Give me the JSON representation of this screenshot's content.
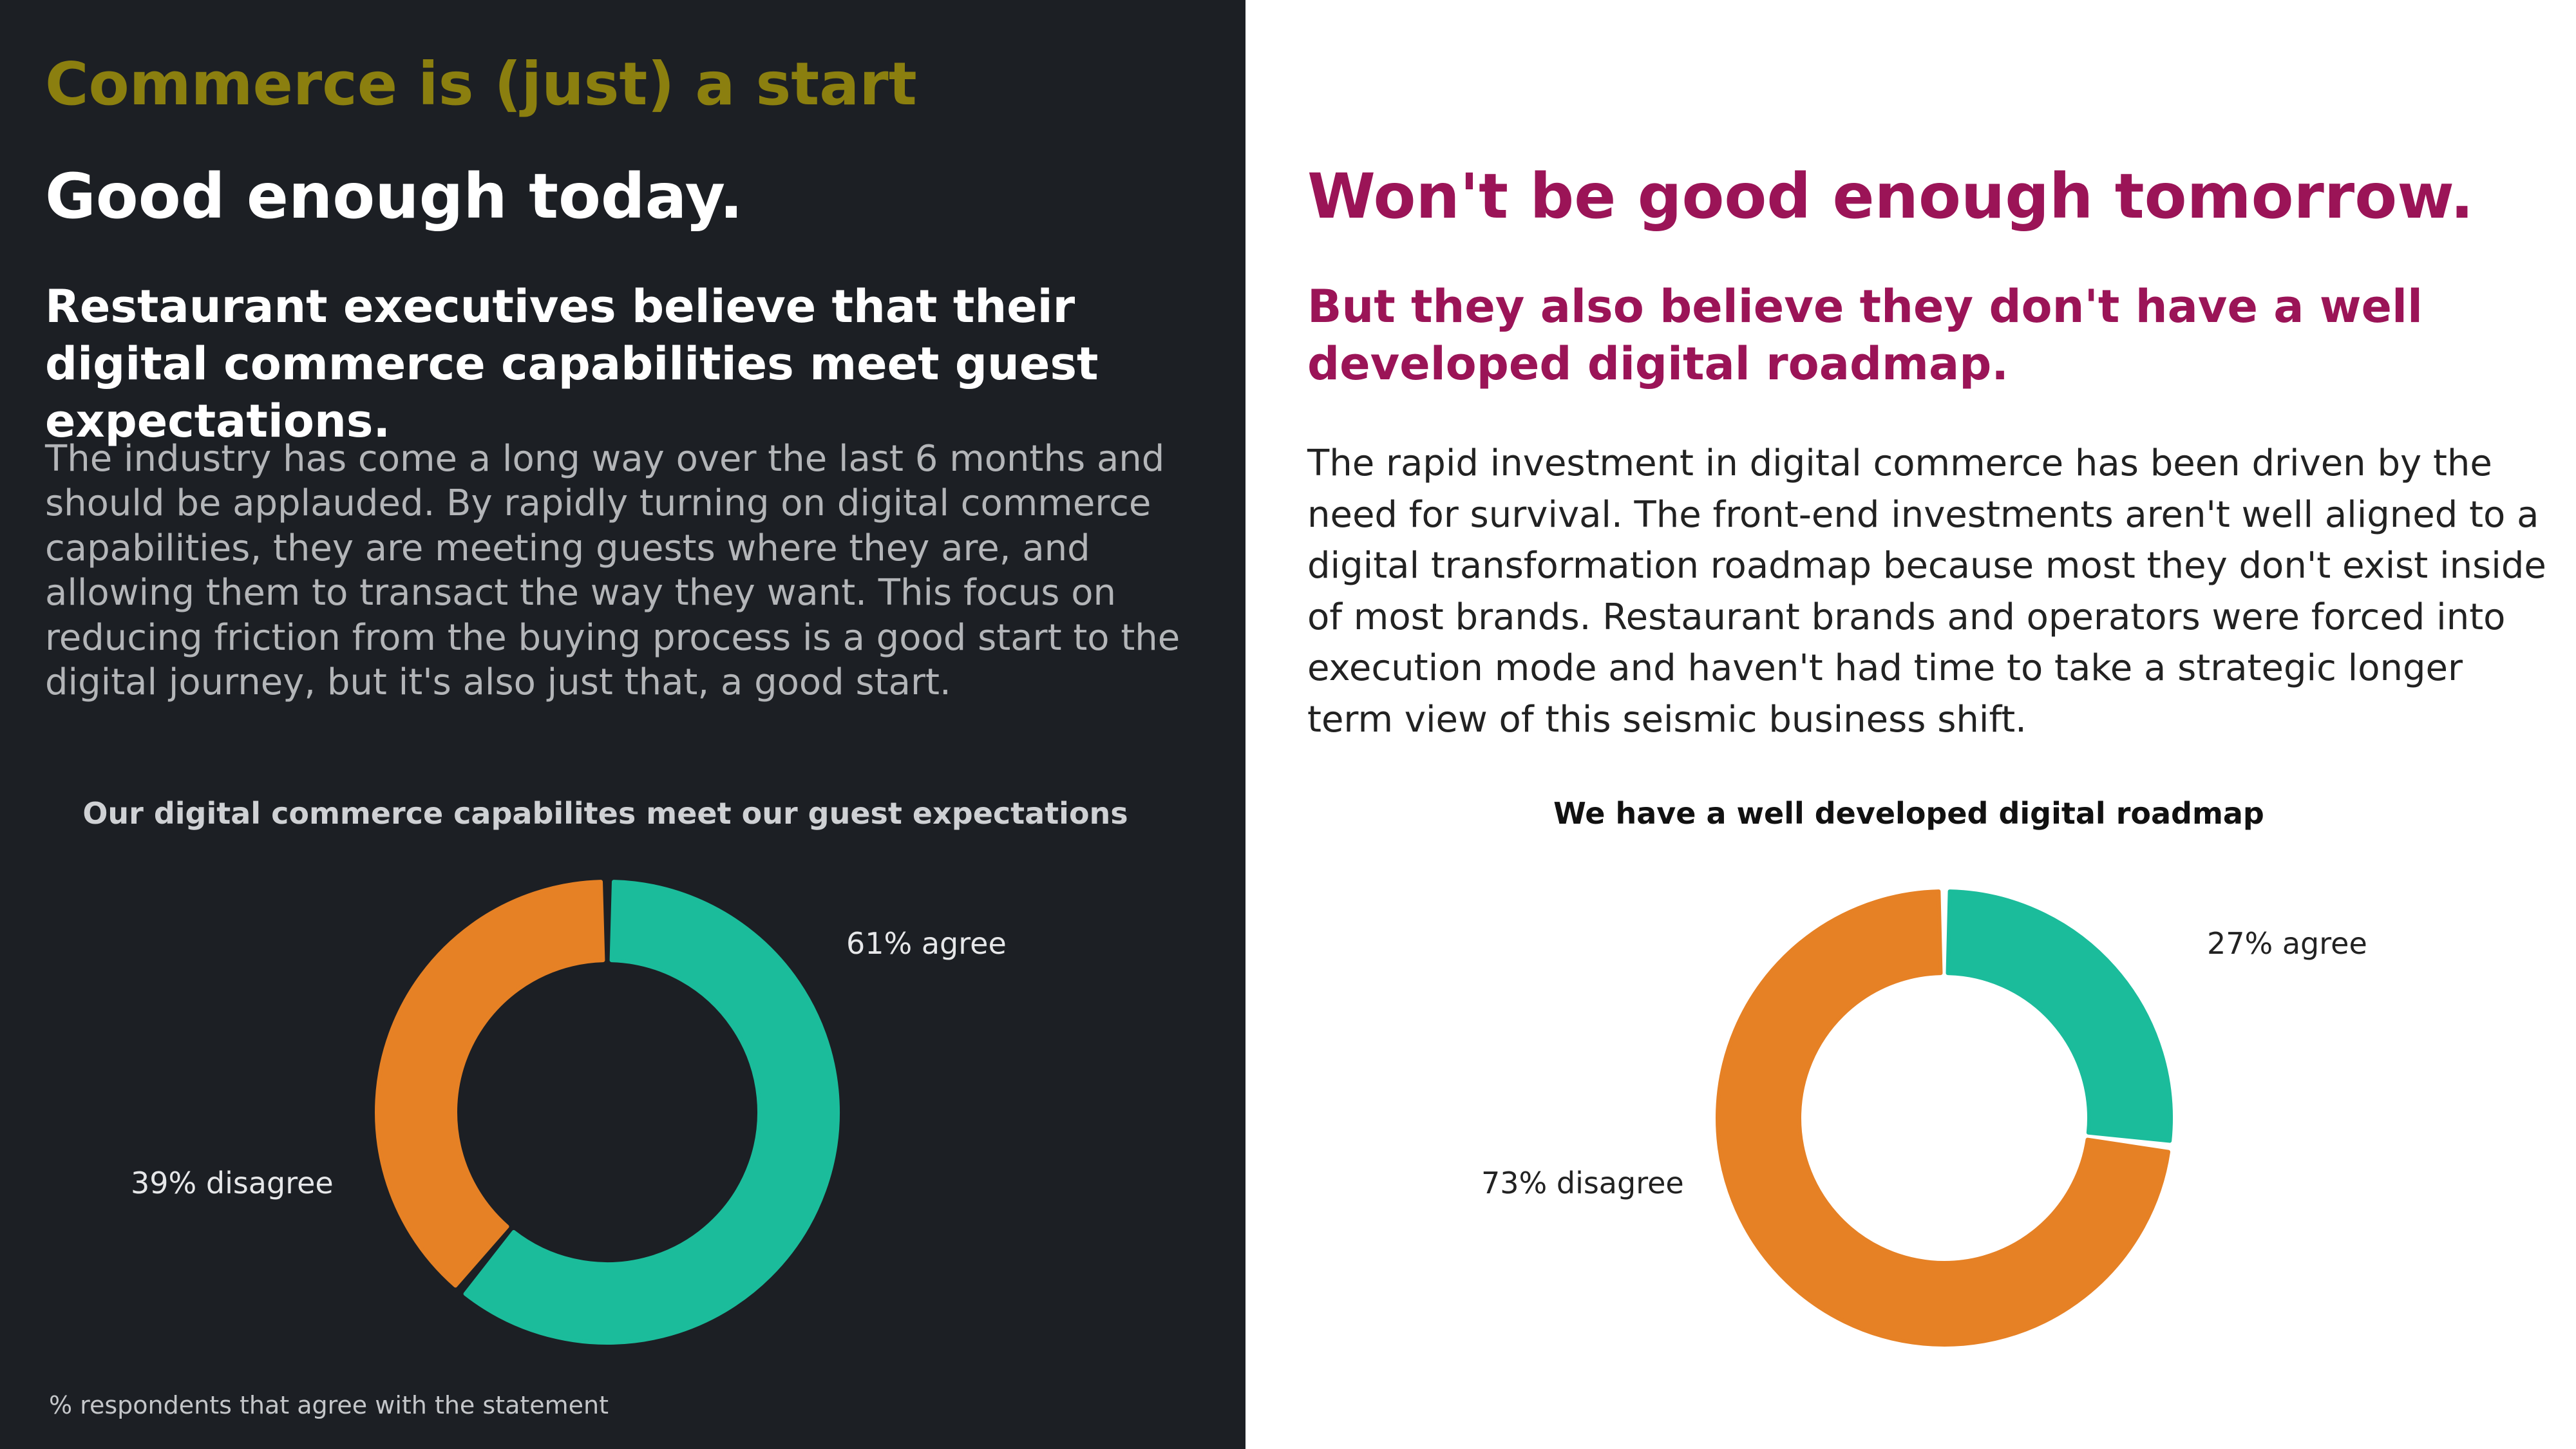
{
  "theme": {
    "left_bg": "#1c1f24",
    "right_bg": "#ffffff",
    "kicker_color": "#8b7f0f",
    "left_text": "#ffffff",
    "left_body_text": "#b3b5b8",
    "right_accent": "#9b1457",
    "right_text": "#222222",
    "agree_color": "#1bbc9b",
    "disagree_color": "#e68125"
  },
  "left": {
    "kicker": "Commerce is (just) a start",
    "headline": "Good enough today.",
    "subheadline": "Restaurant executives believe that their digital commerce capabilities meet guest expectations.",
    "body": "The industry has come a long way over the last 6 months and should be applauded. By rapidly turning on digital commerce capabilities, they are meeting guests where they are, and allowing them to transact the way they want. This focus on reducing friction from the buying process is a good start to the digital journey, but it's also just that, a good start.",
    "footnote": "% respondents that agree with the statement"
  },
  "right": {
    "headline": "Won't be good enough tomorrow.",
    "subheadline": "But they also believe they don't have a well developed digital roadmap.",
    "body": "The rapid investment in digital commerce has been driven by the need for survival. The front-end investments aren't well aligned to a digital transformation roadmap because most they don't exist inside of most brands. Restaurant brands and operators were forced into execution mode and haven't had time to take a strategic longer term view of this seismic business shift."
  },
  "chart_data": [
    {
      "type": "pie",
      "title": "Our digital commerce capabilites meet our guest expectations",
      "series": [
        {
          "name": "agree",
          "value": 61,
          "label": "61% agree",
          "color": "#1bbc9b"
        },
        {
          "name": "disagree",
          "value": 39,
          "label": "39% disagree",
          "color": "#e68125"
        }
      ]
    },
    {
      "type": "pie",
      "title": "We have a well developed digital roadmap",
      "series": [
        {
          "name": "agree",
          "value": 27,
          "label": "27% agree",
          "color": "#1bbc9b"
        },
        {
          "name": "disagree",
          "value": 73,
          "label": "73% disagree",
          "color": "#e68125"
        }
      ]
    }
  ]
}
